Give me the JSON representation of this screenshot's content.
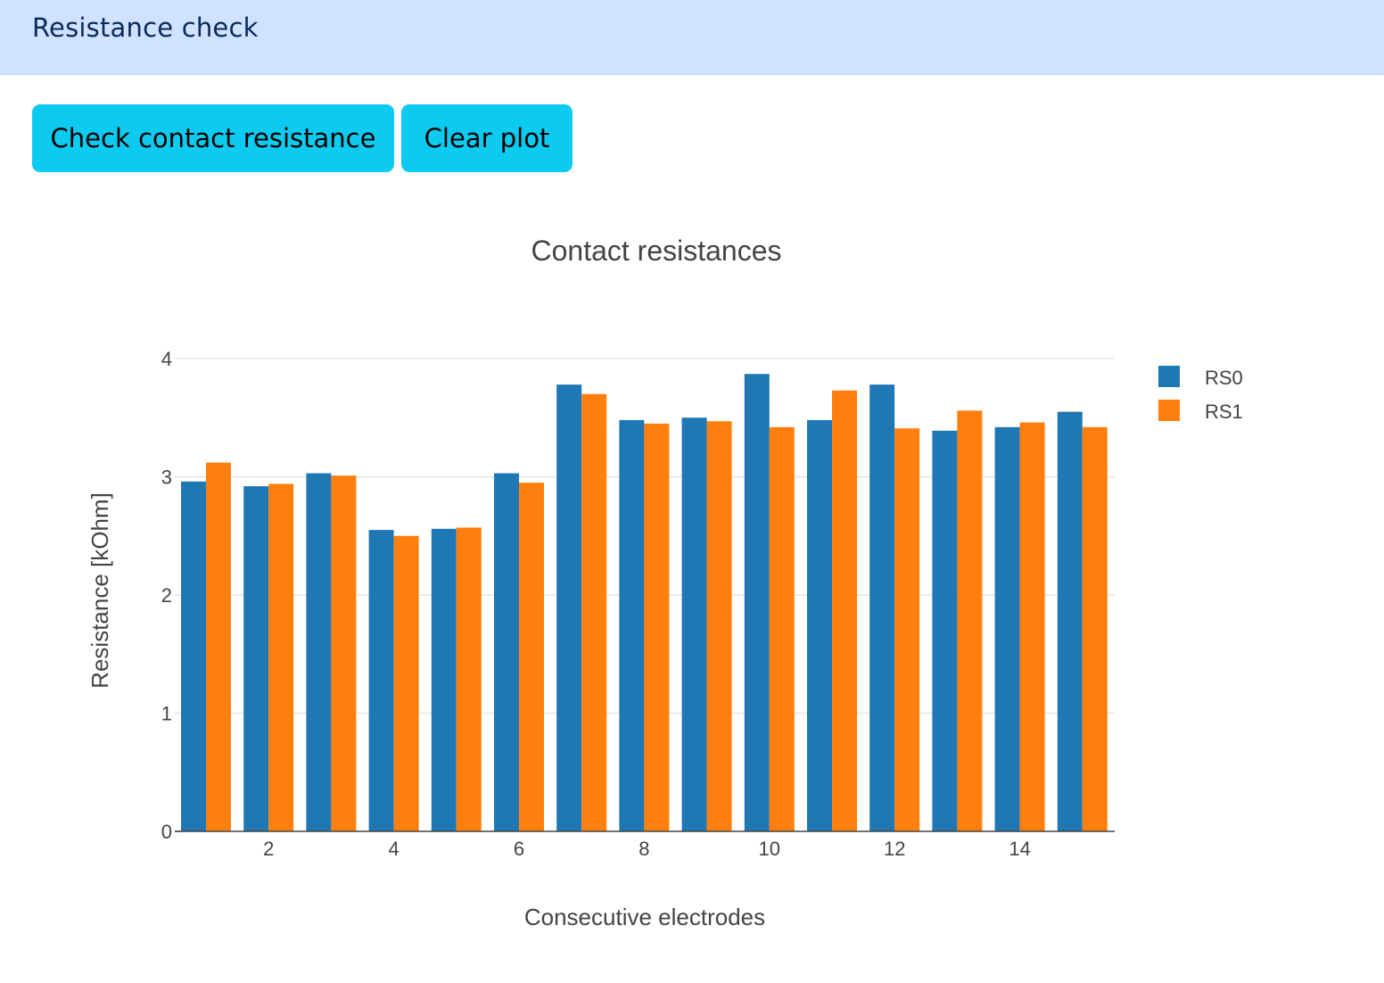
{
  "header": {
    "title": "Resistance check"
  },
  "toolbar": {
    "check_label": "Check contact resistance",
    "clear_label": "Clear plot"
  },
  "colors": {
    "header_bg": "#cfe2ff",
    "button_bg": "#0dcaf0",
    "rs0": "#1f77b4",
    "rs1": "#ff7f0e"
  },
  "chart_data": {
    "type": "bar",
    "title": "Contact resistances",
    "xlabel": "Consecutive electrodes",
    "ylabel": "Resistance [kOhm]",
    "ylim": [
      0,
      4.2
    ],
    "grid": true,
    "legend_position": "top-right",
    "x_ticks": [
      2,
      4,
      6,
      8,
      10,
      12,
      14
    ],
    "y_ticks": [
      0,
      1,
      2,
      3,
      4
    ],
    "categories": [
      1,
      2,
      3,
      4,
      5,
      6,
      7,
      8,
      9,
      10,
      11,
      12,
      13,
      14,
      15
    ],
    "series": [
      {
        "name": "RS0",
        "color": "#1f77b4",
        "values": [
          2.96,
          2.92,
          3.03,
          2.55,
          2.56,
          3.03,
          3.78,
          3.48,
          3.5,
          3.87,
          3.48,
          3.78,
          3.39,
          3.42,
          3.55
        ]
      },
      {
        "name": "RS1",
        "color": "#ff7f0e",
        "values": [
          3.12,
          2.94,
          3.01,
          2.5,
          2.57,
          2.95,
          3.7,
          3.45,
          3.47,
          3.42,
          3.73,
          3.41,
          3.56,
          3.46,
          3.42
        ]
      }
    ]
  }
}
